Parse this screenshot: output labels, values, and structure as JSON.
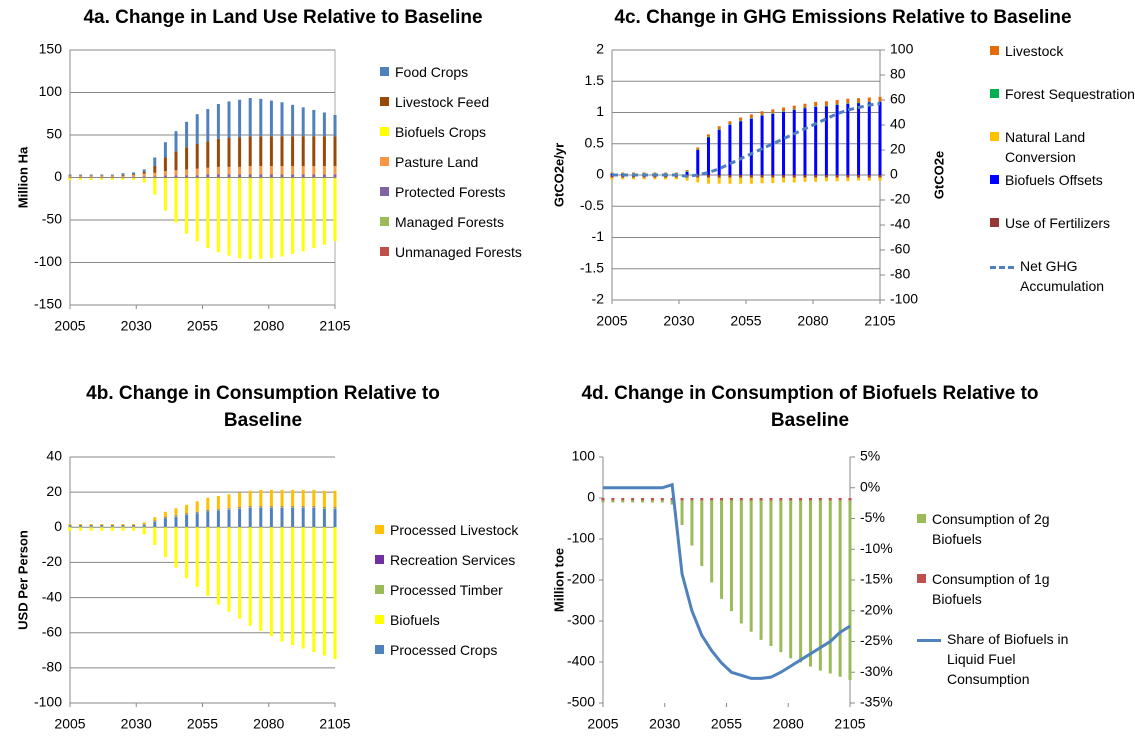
{
  "chart_data": [
    {
      "type": "bar",
      "stacked": true,
      "title": "4a. Change in Land Use Relative to Baseline",
      "ylabel": "Million Ha",
      "x": [
        2005,
        2009,
        2013,
        2017,
        2021,
        2025,
        2029,
        2033,
        2037,
        2041,
        2045,
        2049,
        2053,
        2057,
        2061,
        2065,
        2069,
        2073,
        2077,
        2081,
        2085,
        2089,
        2093,
        2097,
        2101,
        2105
      ],
      "xlim": [
        2005,
        2105
      ],
      "xticks": [
        2005,
        2030,
        2055,
        2080,
        2105
      ],
      "ylim": [
        -150,
        150
      ],
      "yticks": [
        -150,
        -100,
        -50,
        0,
        50,
        100,
        150
      ],
      "grid": true,
      "series": [
        {
          "name": "Food Crops",
          "color": "#4f81bd",
          "values": [
            1,
            1,
            1,
            1,
            1,
            2,
            2,
            3,
            10,
            18,
            24,
            30,
            35,
            38,
            41,
            43,
            44,
            45,
            44,
            42,
            40,
            37,
            34,
            31,
            28,
            25
          ]
        },
        {
          "name": "Livestock Feed",
          "color": "#984807",
          "values": [
            0.5,
            0.5,
            0.5,
            0.5,
            0.5,
            1,
            1,
            2,
            8,
            16,
            22,
            26,
            29,
            31,
            33,
            34,
            35,
            35,
            35,
            35,
            35,
            35,
            35,
            35,
            35,
            35
          ]
        },
        {
          "name": "Biofuels Crops",
          "color": "#ffff00",
          "values": [
            -2,
            -2,
            -2,
            -2,
            -2,
            -2,
            -2,
            -5,
            -19,
            -38,
            -52,
            -65,
            -74,
            -82,
            -87,
            -91,
            -94,
            -95,
            -95,
            -94,
            -92,
            -89,
            -86,
            -82,
            -78,
            -74
          ]
        },
        {
          "name": "Pasture Land",
          "color": "#f79646",
          "values": [
            1,
            1,
            1,
            1,
            1,
            1,
            2,
            3,
            4,
            5,
            6,
            7,
            8,
            8,
            9,
            9,
            9,
            10,
            10,
            10,
            10,
            10,
            10,
            10,
            10,
            10
          ]
        },
        {
          "name": "Protected Forests",
          "color": "#8064a2",
          "values": [
            0.5,
            0.5,
            0.5,
            0.5,
            0.5,
            0.5,
            0.5,
            1,
            1,
            2,
            2,
            2,
            2,
            3,
            3,
            3,
            3,
            3,
            3,
            3,
            3,
            3,
            3,
            3,
            3,
            3
          ]
        },
        {
          "name": "Managed Forests",
          "color": "#9bbb59",
          "values": [
            -1,
            -1,
            -1,
            -1,
            -1,
            -1,
            -1,
            -1,
            -1,
            -1,
            -1,
            -1,
            -1,
            -1,
            -1,
            -1,
            -1,
            -1,
            -1,
            -1,
            -1,
            -1,
            -1,
            -1,
            -1,
            -1
          ]
        },
        {
          "name": "Unmanaged Forests",
          "color": "#c0504d",
          "values": [
            0.5,
            0.5,
            0.5,
            0.5,
            0.5,
            0.5,
            0.5,
            0.5,
            0.5,
            0.5,
            0.5,
            0.5,
            0.5,
            0.5,
            0.5,
            0.5,
            0.5,
            0.5,
            0.5,
            0.5,
            0.5,
            0.5,
            0.5,
            0.5,
            0.5,
            0.5
          ]
        }
      ]
    },
    {
      "type": "bar",
      "stacked": true,
      "title": "4c. Change in GHG Emissions Relative to Baseline",
      "ylabel": "GtCO2e/yr",
      "y2label": "GtCO2e",
      "x": [
        2005,
        2009,
        2013,
        2017,
        2021,
        2025,
        2029,
        2033,
        2037,
        2041,
        2045,
        2049,
        2053,
        2057,
        2061,
        2065,
        2069,
        2073,
        2077,
        2081,
        2085,
        2089,
        2093,
        2097,
        2101,
        2105
      ],
      "xlim": [
        2005,
        2105
      ],
      "xticks": [
        2005,
        2030,
        2055,
        2080,
        2105
      ],
      "ylim": [
        -2,
        2
      ],
      "yticks": [
        -2,
        -1.5,
        -1,
        -0.5,
        0,
        0.5,
        1,
        1.5,
        2
      ],
      "grid": true,
      "y2lim": [
        -100,
        100
      ],
      "y2ticks": [
        -100,
        -80,
        -60,
        -40,
        -20,
        0,
        20,
        40,
        60,
        80,
        100
      ],
      "series": [
        {
          "name": "Livestock",
          "color": "#e36c09",
          "values": [
            0.01,
            0.01,
            0.01,
            0.01,
            0.01,
            0.01,
            0.01,
            0.02,
            0.03,
            0.04,
            0.05,
            0.05,
            0.05,
            0.06,
            0.06,
            0.06,
            0.06,
            0.06,
            0.06,
            0.07,
            0.07,
            0.07,
            0.07,
            0.07,
            0.07,
            0.07
          ]
        },
        {
          "name": "Forest Sequestration",
          "color": "#00b050",
          "values": [
            0.01,
            0.01,
            0.01,
            0.01,
            0.01,
            0.01,
            0.01,
            0.01,
            0.01,
            0.01,
            0.01,
            0.01,
            0.01,
            0.01,
            0.01,
            0.01,
            0.01,
            0.01,
            0.01,
            0.01,
            0.01,
            0.01,
            0.01,
            0.01,
            0.01,
            0.01
          ]
        },
        {
          "name": "Natural Land Conversion",
          "color": "#ffc000",
          "values": [
            -0.03,
            -0.03,
            -0.03,
            -0.03,
            -0.03,
            -0.03,
            -0.03,
            -0.05,
            -0.08,
            -0.1,
            -0.1,
            -0.1,
            -0.1,
            -0.1,
            -0.09,
            -0.09,
            -0.08,
            -0.08,
            -0.07,
            -0.07,
            -0.06,
            -0.06,
            -0.06,
            -0.05,
            -0.05,
            -0.05
          ]
        },
        {
          "name": "Biofuels Offsets",
          "color": "#0000ff",
          "values": [
            0.02,
            0.02,
            0.02,
            0.02,
            0.02,
            0.02,
            0.02,
            0.05,
            0.4,
            0.6,
            0.72,
            0.8,
            0.86,
            0.9,
            0.95,
            0.98,
            1.01,
            1.04,
            1.07,
            1.09,
            1.1,
            1.12,
            1.14,
            1.15,
            1.16,
            1.17
          ]
        },
        {
          "name": "Use of Fertilizers",
          "color": "#953735",
          "values": [
            -0.04,
            -0.04,
            -0.04,
            -0.04,
            -0.04,
            -0.04,
            -0.04,
            -0.04,
            -0.04,
            -0.04,
            -0.04,
            -0.04,
            -0.04,
            -0.04,
            -0.04,
            -0.04,
            -0.04,
            -0.04,
            -0.04,
            -0.04,
            -0.04,
            -0.04,
            -0.04,
            -0.04,
            -0.04,
            -0.04
          ]
        },
        {
          "name": "Net GHG Accumulation",
          "color": "#4f81bd",
          "type": "line",
          "dashed": true,
          "axis": "y2",
          "values": [
            0,
            0,
            0,
            0,
            0,
            0,
            0,
            -1,
            0,
            2,
            5,
            9,
            13,
            17,
            21,
            25,
            29,
            33,
            37,
            41,
            45,
            49,
            52,
            54,
            56,
            57
          ]
        }
      ]
    },
    {
      "type": "bar",
      "stacked": true,
      "title": "4b. Change in Consumption Relative to Baseline",
      "ylabel": "USD Per Person",
      "x": [
        2005,
        2009,
        2013,
        2017,
        2021,
        2025,
        2029,
        2033,
        2037,
        2041,
        2045,
        2049,
        2053,
        2057,
        2061,
        2065,
        2069,
        2073,
        2077,
        2081,
        2085,
        2089,
        2093,
        2097,
        2101,
        2105
      ],
      "xlim": [
        2005,
        2105
      ],
      "xticks": [
        2005,
        2030,
        2055,
        2080,
        2105
      ],
      "ylim": [
        -100,
        40
      ],
      "yticks": [
        -100,
        -80,
        -60,
        -40,
        -20,
        0,
        20,
        40
      ],
      "grid": true,
      "series": [
        {
          "name": "Processed Livestock",
          "color": "#ffc000",
          "values": [
            0.5,
            0.5,
            0.5,
            0.5,
            0.5,
            0.5,
            0.5,
            1,
            2,
            3,
            4,
            5,
            6,
            7,
            7.5,
            8,
            8.5,
            9,
            9.5,
            9.5,
            9.5,
            9.5,
            9.5,
            9.5,
            9.5,
            9.5
          ]
        },
        {
          "name": "Recreation Services",
          "color": "#7030a0",
          "values": [
            0.3,
            0.3,
            0.3,
            0.3,
            0.3,
            0.3,
            0.3,
            0.3,
            0.3,
            0.3,
            0.3,
            0.3,
            0.3,
            0.3,
            0.3,
            0.3,
            0.3,
            0.3,
            0.3,
            0.3,
            0.3,
            0.3,
            0.3,
            0.3,
            0.3,
            0.3
          ]
        },
        {
          "name": "Processed Timber",
          "color": "#9bbb59",
          "values": [
            0.5,
            0.5,
            0.5,
            0.5,
            0.5,
            0.5,
            0.5,
            0.5,
            0.5,
            0.5,
            0.5,
            0.5,
            0.5,
            0.5,
            0.5,
            0.5,
            0.5,
            0.5,
            0.5,
            0.5,
            0.5,
            0.5,
            0.5,
            0.5,
            0.5,
            0.5
          ]
        },
        {
          "name": "Biofuels",
          "color": "#ffff00",
          "values": [
            -2,
            -2,
            -2,
            -2,
            -2,
            -2,
            -2,
            -4,
            -10,
            -17,
            -23,
            -29,
            -34,
            -39,
            -44,
            -48,
            -52,
            -56,
            -59,
            -62,
            -65,
            -67,
            -69,
            -71,
            -73,
            -75
          ]
        },
        {
          "name": "Processed Crops",
          "color": "#4f81bd",
          "values": [
            0.5,
            0.5,
            0.5,
            0.5,
            0.5,
            0.5,
            0.5,
            1,
            3,
            5,
            6,
            7,
            8,
            9,
            9.5,
            10,
            10.5,
            11,
            11,
            11,
            11,
            11,
            11,
            11,
            10.5,
            10.5
          ]
        }
      ]
    },
    {
      "type": "bar",
      "stacked": true,
      "title": "4d. Change in Consumption of Biofuels Relative to Baseline",
      "ylabel": "Million toe",
      "x": [
        2005,
        2009,
        2013,
        2017,
        2021,
        2025,
        2029,
        2033,
        2037,
        2041,
        2045,
        2049,
        2053,
        2057,
        2061,
        2065,
        2069,
        2073,
        2077,
        2081,
        2085,
        2089,
        2093,
        2097,
        2101,
        2105
      ],
      "xlim": [
        2005,
        2105
      ],
      "xticks": [
        2005,
        2030,
        2055,
        2080,
        2105
      ],
      "ylim": [
        -500,
        100
      ],
      "yticks": [
        -500,
        -400,
        -300,
        -200,
        -100,
        0,
        100
      ],
      "grid": false,
      "y2lim": [
        -35,
        5
      ],
      "y2ticks": [
        {
          "value": -35,
          "label": "-35%"
        },
        {
          "value": -30,
          "label": "-30%"
        },
        {
          "value": -25,
          "label": "-25%"
        },
        {
          "value": -20,
          "label": "-20%"
        },
        {
          "value": -15,
          "label": "-15%"
        },
        {
          "value": -10,
          "label": "-10%"
        },
        {
          "value": -5,
          "label": "-5%"
        },
        {
          "value": 0,
          "label": "0%"
        },
        {
          "value": 5,
          "label": "5%"
        }
      ],
      "series": [
        {
          "name": "Consumption of 2g Biofuels",
          "color": "#9bbb59",
          "values": [
            -5,
            -5,
            -5,
            -5,
            -5,
            -5,
            -5,
            -10,
            -60,
            -110,
            -160,
            -200,
            -240,
            -270,
            -300,
            -320,
            -340,
            -355,
            -370,
            -385,
            -395,
            -405,
            -415,
            -422,
            -430,
            -438
          ]
        },
        {
          "name": "Consumption of 1g Biofuels",
          "color": "#c0504d",
          "values": [
            -6,
            -6,
            -6,
            -6,
            -6,
            -6,
            -6,
            -6,
            -6,
            -6,
            -6,
            -6,
            -6,
            -6,
            -6,
            -6,
            -6,
            -6,
            -6,
            -6,
            -6,
            -6,
            -6,
            -6,
            -6,
            -6
          ]
        },
        {
          "name": "Share of Biofuels in Liquid Fuel Consumption",
          "color": "#4f81bd",
          "type": "line",
          "axis": "y2",
          "values": [
            0,
            0,
            0,
            0,
            0,
            0,
            0,
            0.5,
            -14,
            -20,
            -24,
            -26.5,
            -28.5,
            -30,
            -30.5,
            -31,
            -31,
            -30.8,
            -30,
            -29,
            -28,
            -27,
            -26,
            -25,
            -23.5,
            -22.5
          ]
        }
      ]
    }
  ]
}
